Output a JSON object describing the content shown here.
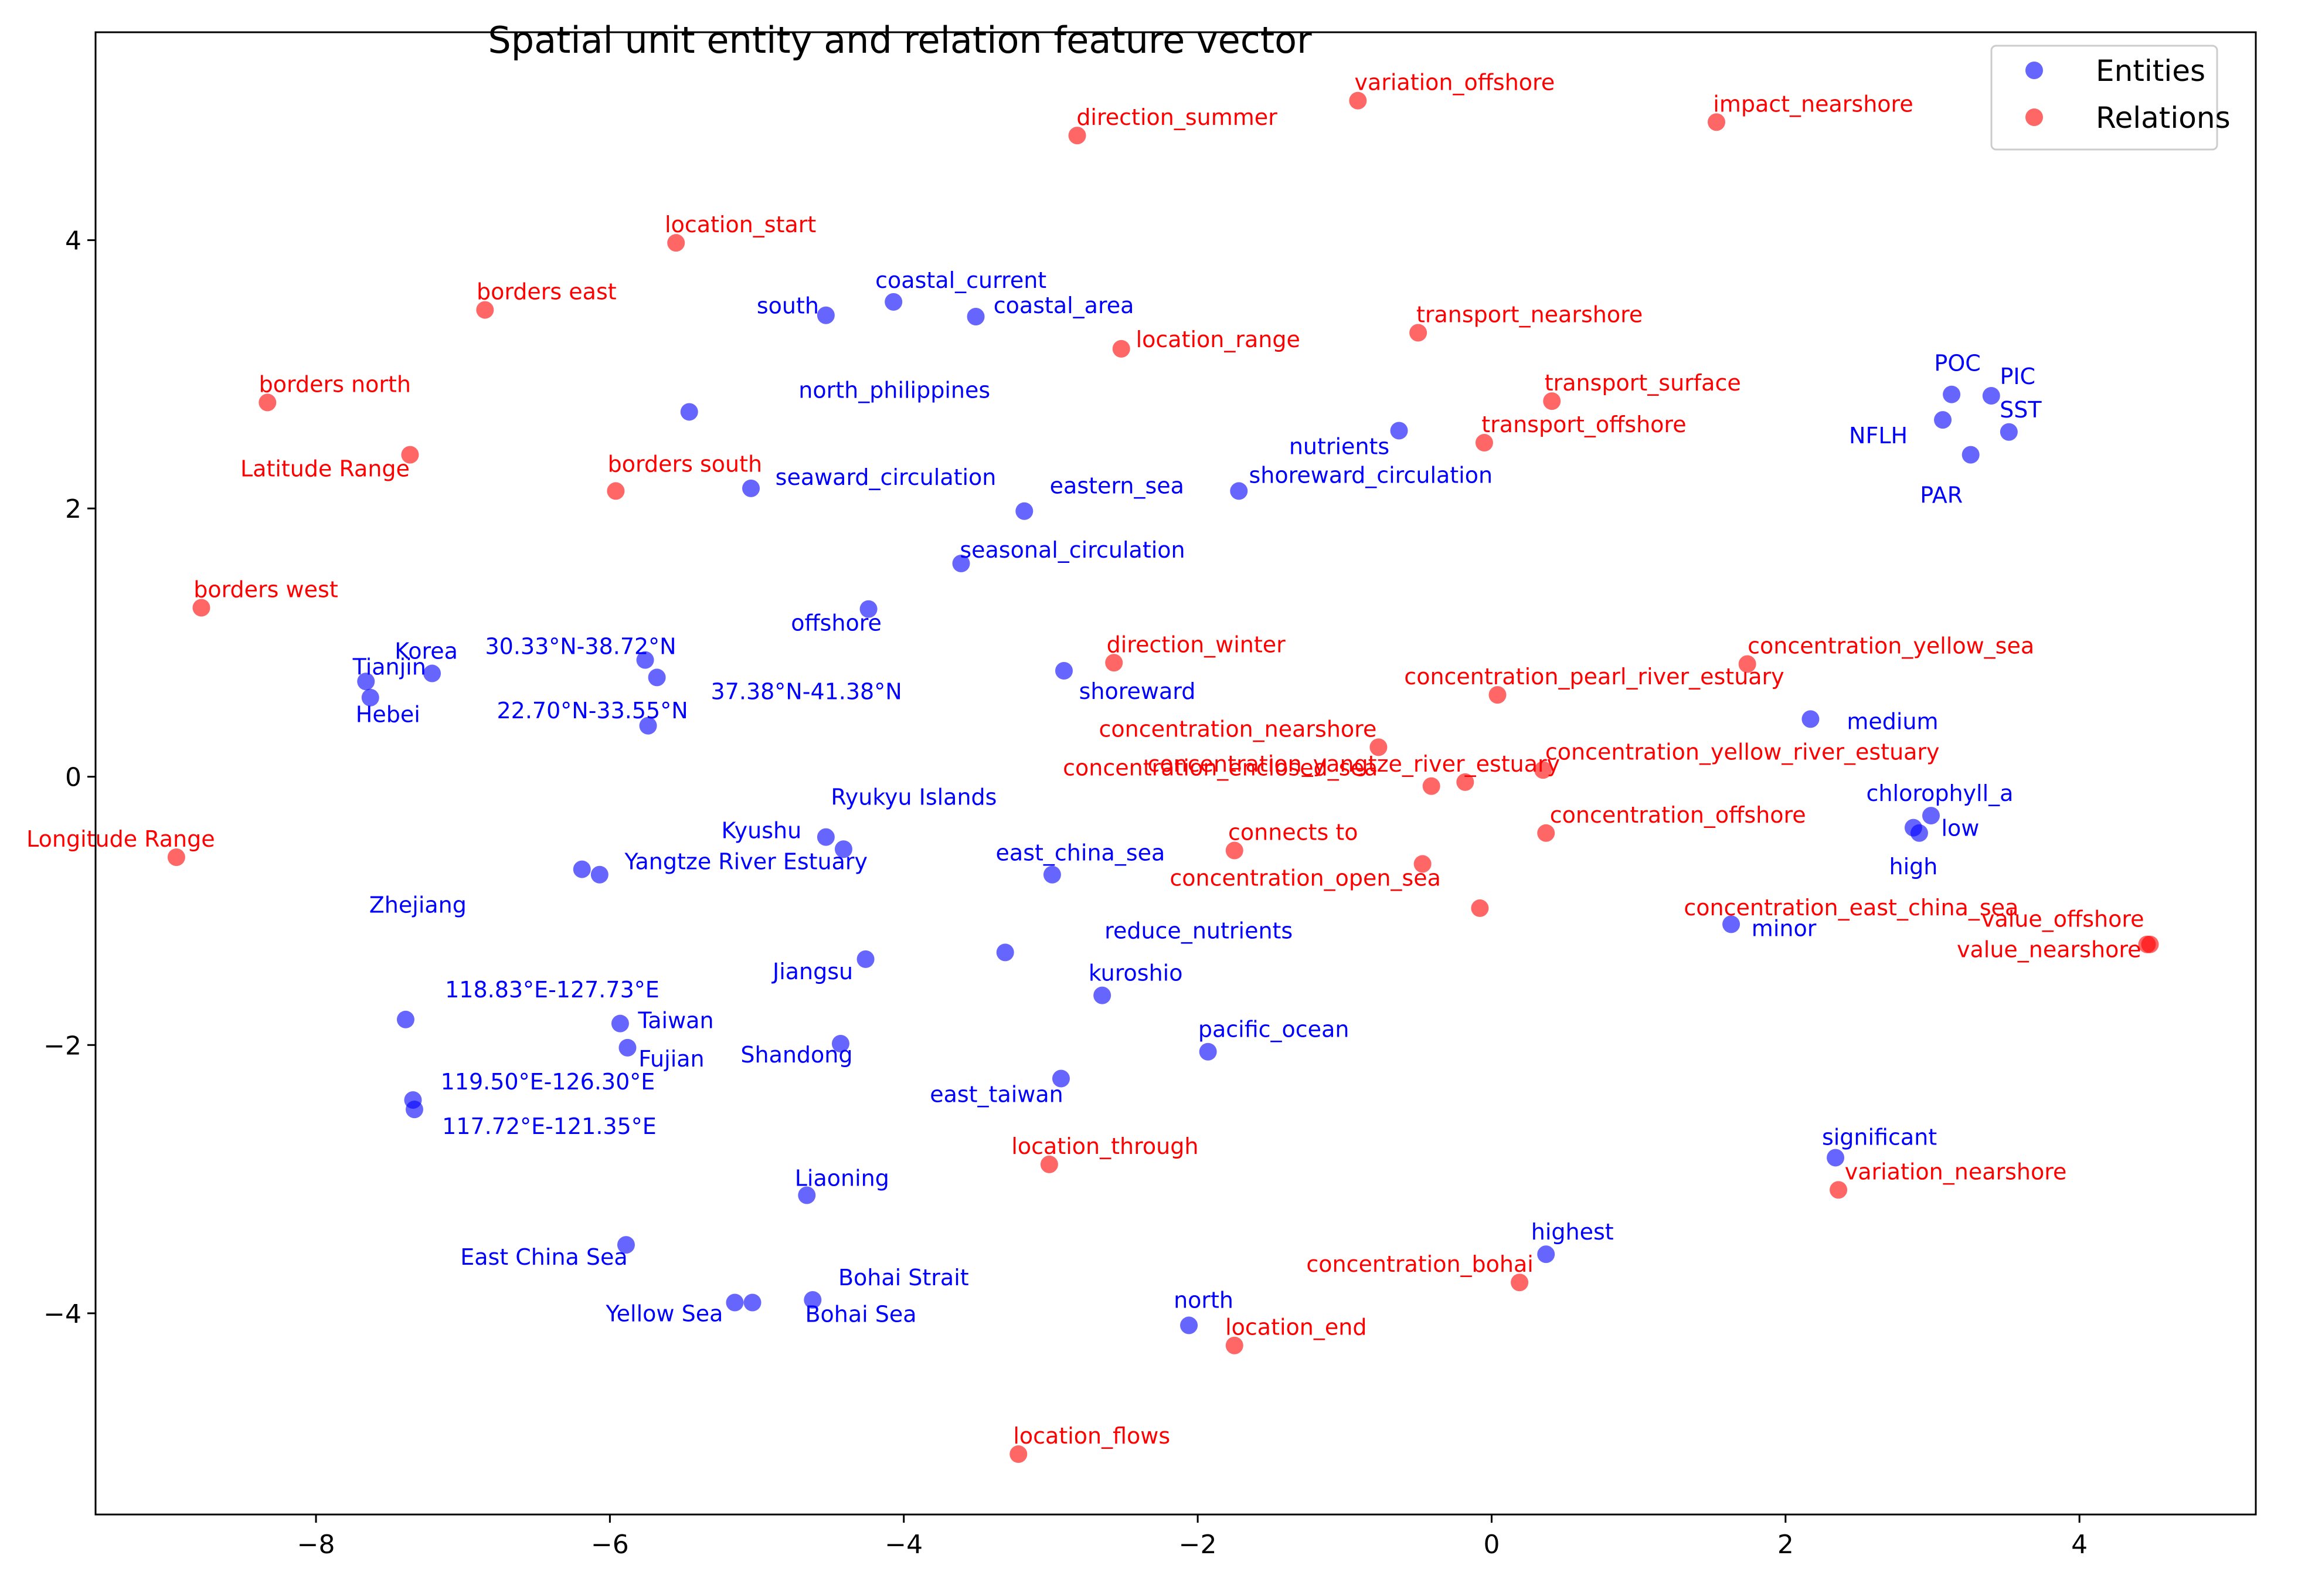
{
  "chart_data": {
    "type": "scatter",
    "title": "Spatial unit entity and relation feature vector",
    "xlabel": "",
    "ylabel": "",
    "xlim": [
      -9.5,
      5.2
    ],
    "ylim": [
      -5.5,
      5.55
    ],
    "xticks": [
      -8,
      -6,
      -4,
      -2,
      0,
      2,
      4
    ],
    "yticks": [
      -4,
      -2,
      0,
      2,
      4
    ],
    "grid": false,
    "legend": "top-right",
    "series": [
      {
        "name": "Entities",
        "color": "#0000ff",
        "points": [
          {
            "label": "coastal_current",
            "x": -4.07,
            "y": 3.54
          },
          {
            "label": "south",
            "x": -4.53,
            "y": 3.44
          },
          {
            "label": "coastal_area",
            "x": -3.51,
            "y": 3.43
          },
          {
            "label": "north_philippines",
            "x": -5.46,
            "y": 2.72
          },
          {
            "label": "seaward_circulation",
            "x": -5.04,
            "y": 2.15
          },
          {
            "label": "eastern_sea",
            "x": -3.18,
            "y": 1.98
          },
          {
            "label": "shoreward_circulation",
            "x": -1.72,
            "y": 2.13
          },
          {
            "label": "nutrients",
            "x": -0.63,
            "y": 2.58
          },
          {
            "label": "seasonal_circulation",
            "x": -3.61,
            "y": 1.59
          },
          {
            "label": "offshore",
            "x": -4.24,
            "y": 1.25
          },
          {
            "label": "Korea",
            "x": -7.21,
            "y": 0.77
          },
          {
            "label": "Tianjin",
            "x": -7.66,
            "y": 0.71
          },
          {
            "label": "Hebei",
            "x": -7.63,
            "y": 0.59
          },
          {
            "label": "30.33°N-38.72°N",
            "x": -5.76,
            "y": 0.87
          },
          {
            "label": "37.38°N-41.38°N",
            "x": -5.68,
            "y": 0.74
          },
          {
            "label": "22.70°N-33.55°N",
            "x": -5.74,
            "y": 0.38
          },
          {
            "label": "shoreward",
            "x": -2.91,
            "y": 0.79
          },
          {
            "label": "Ryukyu Islands",
            "x": -4.41,
            "y": -0.54
          },
          {
            "label": "Kyushu",
            "x": -4.53,
            "y": -0.45
          },
          {
            "label": "Yangtze River Estuary",
            "x": -6.19,
            "y": -0.69
          },
          {
            "label": "Zhejiang",
            "x": -6.07,
            "y": -0.73
          },
          {
            "label": "east_china_sea",
            "x": -2.99,
            "y": -0.73
          },
          {
            "label": "reduce_nutrients",
            "x": -3.31,
            "y": -1.31
          },
          {
            "label": "Jiangsu",
            "x": -4.26,
            "y": -1.36
          },
          {
            "label": "kuroshio",
            "x": -2.65,
            "y": -1.63
          },
          {
            "label": "118.83°E-127.73°E",
            "x": -7.39,
            "y": -1.81
          },
          {
            "label": "Taiwan",
            "x": -5.93,
            "y": -1.84
          },
          {
            "label": "Fujian",
            "x": -5.88,
            "y": -2.02
          },
          {
            "label": "Shandong",
            "x": -4.43,
            "y": -1.99
          },
          {
            "label": "pacific_ocean",
            "x": -1.93,
            "y": -2.05
          },
          {
            "label": "east_taiwan",
            "x": -2.93,
            "y": -2.25
          },
          {
            "label": "119.50°E-126.30°E",
            "x": -7.34,
            "y": -2.41
          },
          {
            "label": "117.72°E-121.35°E",
            "x": -7.33,
            "y": -2.48
          },
          {
            "label": "Liaoning",
            "x": -4.66,
            "y": -3.12
          },
          {
            "label": "East China Sea",
            "x": -5.89,
            "y": -3.49
          },
          {
            "label": "Yellow Sea",
            "x": -5.15,
            "y": -3.92
          },
          {
            "label": "Bohai Sea",
            "x": -5.03,
            "y": -3.92
          },
          {
            "label": "Bohai Strait",
            "x": -4.62,
            "y": -3.9
          },
          {
            "label": "north",
            "x": -2.06,
            "y": -4.09
          },
          {
            "label": "highest",
            "x": 0.37,
            "y": -3.56
          },
          {
            "label": "POC",
            "x": 3.13,
            "y": 2.85
          },
          {
            "label": "PIC",
            "x": 3.4,
            "y": 2.84
          },
          {
            "label": "NFLH",
            "x": 3.07,
            "y": 2.66
          },
          {
            "label": "SST",
            "x": 3.52,
            "y": 2.57
          },
          {
            "label": "PAR",
            "x": 3.26,
            "y": 2.4
          },
          {
            "label": "medium",
            "x": 2.17,
            "y": 0.43
          },
          {
            "label": "chlorophyll_a",
            "x": 2.99,
            "y": -0.29
          },
          {
            "label": "low",
            "x": 2.87,
            "y": -0.38
          },
          {
            "label": "high",
            "x": 2.91,
            "y": -0.42
          },
          {
            "label": "minor",
            "x": 1.63,
            "y": -1.1
          },
          {
            "label": "significant",
            "x": 2.34,
            "y": -2.84
          }
        ]
      },
      {
        "name": "Relations",
        "color": "#ff0000",
        "points": [
          {
            "label": "variation_offshore",
            "x": -0.91,
            "y": 5.04
          },
          {
            "label": "direction_summer",
            "x": -2.82,
            "y": 4.78
          },
          {
            "label": "impact_nearshore",
            "x": 1.53,
            "y": 4.88
          },
          {
            "label": "location_start",
            "x": -5.55,
            "y": 3.98
          },
          {
            "label": "borders east",
            "x": -6.85,
            "y": 3.48
          },
          {
            "label": "transport_nearshore",
            "x": -0.5,
            "y": 3.31
          },
          {
            "label": "location_range",
            "x": -2.52,
            "y": 3.19
          },
          {
            "label": "borders north",
            "x": -8.33,
            "y": 2.79
          },
          {
            "label": "transport_surface",
            "x": 0.41,
            "y": 2.8
          },
          {
            "label": "transport_offshore",
            "x": -0.05,
            "y": 2.49
          },
          {
            "label": "Latitude Range",
            "x": -7.36,
            "y": 2.4
          },
          {
            "label": "borders south",
            "x": -5.96,
            "y": 2.13
          },
          {
            "label": "borders west",
            "x": -8.78,
            "y": 1.26
          },
          {
            "label": "direction_winter",
            "x": -2.57,
            "y": 0.85
          },
          {
            "label": "concentration_yellow_sea",
            "x": 1.74,
            "y": 0.84
          },
          {
            "label": "concentration_pearl_river_estuary",
            "x": 0.04,
            "y": 0.61
          },
          {
            "label": "concentration_nearshore",
            "x": -0.77,
            "y": 0.22
          },
          {
            "label": "concentration_yellow_river_estuary",
            "x": 0.35,
            "y": 0.05
          },
          {
            "label": "concentration_yangtze_river_estuary",
            "x": -0.18,
            "y": -0.04
          },
          {
            "label": "concentration_enclosed_sea",
            "x": -0.41,
            "y": -0.07
          },
          {
            "label": "Longitude Range",
            "x": -8.95,
            "y": -0.6
          },
          {
            "label": "connects to",
            "x": -1.75,
            "y": -0.55
          },
          {
            "label": "concentration_offshore",
            "x": 0.37,
            "y": -0.42
          },
          {
            "label": "concentration_open_sea",
            "x": -0.47,
            "y": -0.65
          },
          {
            "label": "concentration_east_china_sea",
            "x": -0.08,
            "y": -0.98
          },
          {
            "label": "value_offshore",
            "x": 4.48,
            "y": -1.25
          },
          {
            "label": "value_nearshore",
            "x": 4.46,
            "y": -1.25
          },
          {
            "label": "location_through",
            "x": -3.01,
            "y": -2.89
          },
          {
            "label": "variation_nearshore",
            "x": 2.36,
            "y": -3.08
          },
          {
            "label": "concentration_bohai",
            "x": 0.19,
            "y": -3.77
          },
          {
            "label": "location_end",
            "x": -1.75,
            "y": -4.24
          },
          {
            "label": "location_flows",
            "x": -3.22,
            "y": -5.05
          }
        ]
      }
    ]
  }
}
